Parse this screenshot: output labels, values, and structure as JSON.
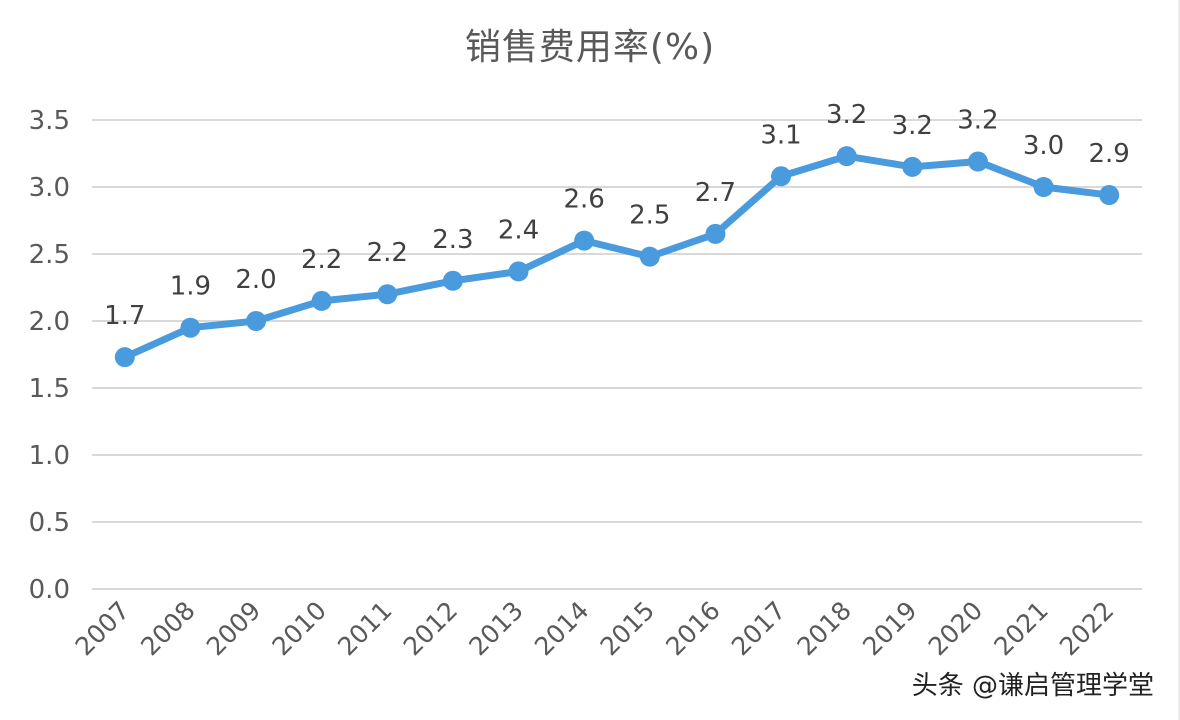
{
  "chart_data": {
    "type": "line",
    "title": "销售费用率(%)",
    "xlabel": "",
    "ylabel": "",
    "categories": [
      "2007",
      "2008",
      "2009",
      "2010",
      "2011",
      "2012",
      "2013",
      "2014",
      "2015",
      "2016",
      "2017",
      "2018",
      "2019",
      "2020",
      "2021",
      "2022"
    ],
    "series": [
      {
        "name": "销售费用率(%)",
        "color": "#4a9ade",
        "values": [
          1.73,
          1.95,
          2.0,
          2.15,
          2.2,
          2.3,
          2.37,
          2.6,
          2.48,
          2.65,
          3.08,
          3.23,
          3.15,
          3.19,
          3.0,
          2.94
        ],
        "data_labels": [
          "1.7",
          "1.9",
          "2.0",
          "2.2",
          "2.2",
          "2.3",
          "2.4",
          "2.6",
          "2.5",
          "2.7",
          "3.1",
          "3.2",
          "3.2",
          "3.2",
          "3.0",
          "2.9"
        ]
      }
    ],
    "ylim": [
      0,
      3.5
    ],
    "yticks": [
      "0.0",
      "0.5",
      "1.0",
      "1.5",
      "2.0",
      "2.5",
      "3.0",
      "3.5"
    ],
    "grid": true,
    "legend": "none",
    "x_tick_rotation": -45
  },
  "watermark": "头条 @谦启管理学堂",
  "colors": {
    "line": "#4a9ade",
    "grid": "#d9d9d9",
    "text": "#595959"
  }
}
